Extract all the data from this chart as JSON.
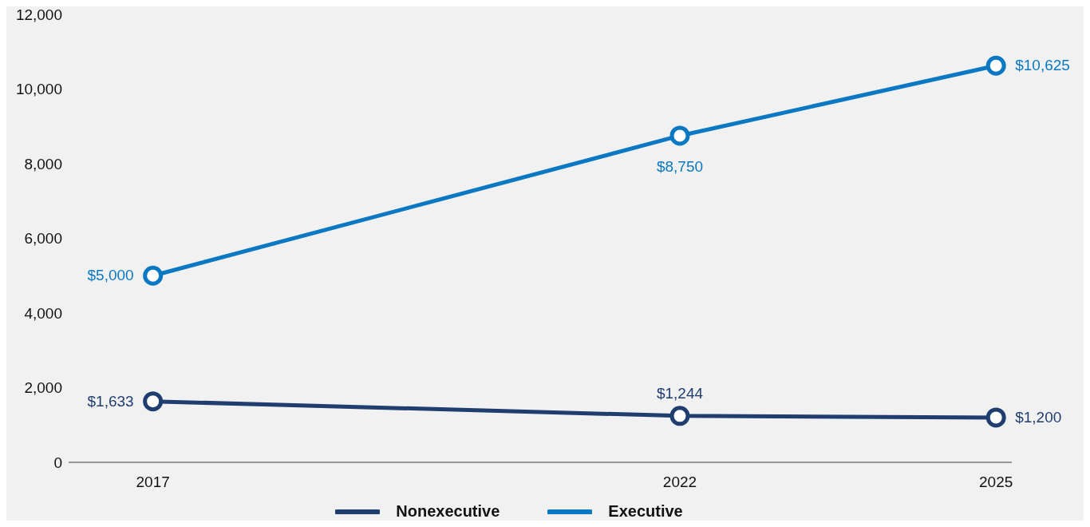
{
  "chart_data": {
    "type": "line",
    "x": [
      2017,
      2022,
      2025
    ],
    "xlim": [
      2016.2,
      2025.15
    ],
    "xticks": [
      2017,
      2022,
      2025
    ],
    "ylim": [
      0,
      12000
    ],
    "yticks": [
      {
        "value": 0,
        "label": "0"
      },
      {
        "value": 2000,
        "label": "2,000"
      },
      {
        "value": 4000,
        "label": "4,000"
      },
      {
        "value": 6000,
        "label": "6,000"
      },
      {
        "value": 8000,
        "label": "8,000"
      },
      {
        "value": 10000,
        "label": "10,000"
      },
      {
        "value": 12000,
        "label": "12,000"
      }
    ],
    "grid": false,
    "legend": "bottom",
    "marker": "circle",
    "line_style": "solid",
    "series": [
      {
        "name": "Nonexecutive",
        "color": "#1f3d6e",
        "values": [
          1633,
          1244,
          1200
        ],
        "value_labels": [
          "$1,633",
          "$1,244",
          "$1,200"
        ]
      },
      {
        "name": "Executive",
        "color": "#0a78c2",
        "values": [
          5000,
          8750,
          10625
        ],
        "value_labels": [
          "$5,000",
          "$8,750",
          "$10,625"
        ]
      }
    ]
  }
}
